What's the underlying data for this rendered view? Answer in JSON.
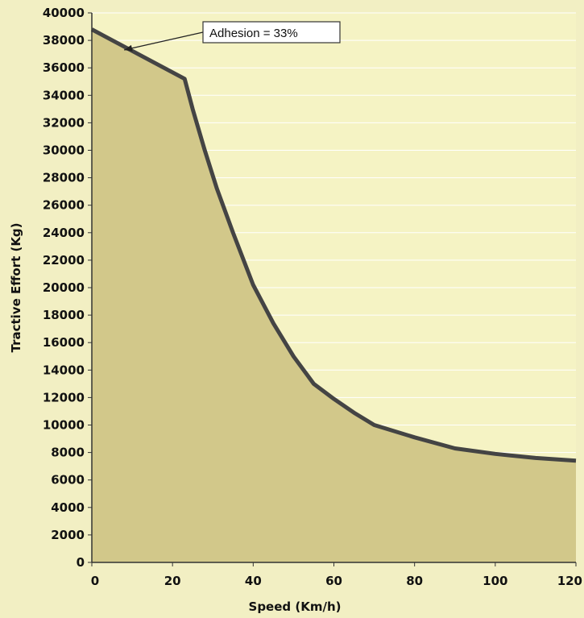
{
  "chart_data": {
    "type": "area",
    "title": "",
    "xlabel": "Speed (Km/h)",
    "ylabel": "Tractive  Effort (Kg)",
    "xlim": [
      0,
      120
    ],
    "ylim": [
      0,
      40000
    ],
    "x_ticks": [
      0,
      20,
      40,
      60,
      80,
      100,
      120
    ],
    "y_ticks": [
      0,
      2000,
      4000,
      6000,
      8000,
      10000,
      12000,
      14000,
      16000,
      18000,
      20000,
      22000,
      24000,
      26000,
      28000,
      30000,
      32000,
      34000,
      36000,
      38000,
      40000
    ],
    "grid": true,
    "legend": "none",
    "series": [
      {
        "x": [
          0,
          23,
          25,
          28,
          31,
          35,
          40,
          45,
          50,
          55,
          60,
          65,
          70,
          80,
          90,
          100,
          110,
          120
        ],
        "y": [
          38800,
          35200,
          33000,
          30000,
          27200,
          24000,
          20200,
          17400,
          15000,
          13000,
          11900,
          10900,
          10000,
          9100,
          8300,
          7900,
          7600,
          7400
        ]
      }
    ],
    "annotation": {
      "text": "Adhesion = 33%",
      "x": 8,
      "y": 37300
    },
    "colors": {
      "background": "#f2efc3",
      "plot_area": "#f5f3c4",
      "fill": "#d2c88a",
      "line": "#444444",
      "grid": "#ffffff"
    }
  }
}
